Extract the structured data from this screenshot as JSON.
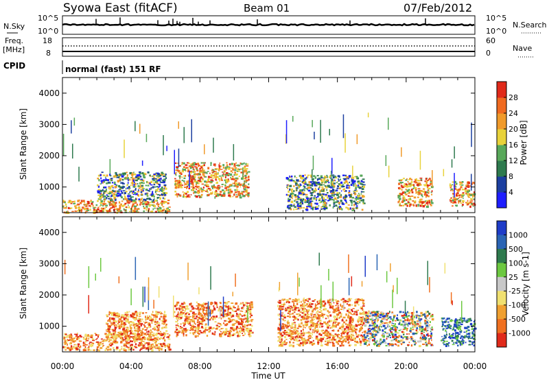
{
  "header": {
    "station": "Syowa East (fitACF)",
    "beam": "Beam 01",
    "date": "07/Feb/2012"
  },
  "panels": {
    "nsky": {
      "label": "N.Sky",
      "ticks": [
        "10^5",
        "10^0"
      ],
      "right_label": "N.Search",
      "right_ticks": [
        "10^5",
        "10^0"
      ]
    },
    "freq": {
      "label_line1": "Freq.",
      "label_line2": "[MHz]",
      "ticks": [
        "18",
        "8"
      ],
      "right_label": "Nave",
      "right_ticks": [
        "60",
        "0"
      ]
    },
    "cpid": {
      "label": "CPID",
      "text": "normal (fast) 151 RF"
    }
  },
  "chart_data": [
    {
      "type": "heatmap",
      "title": "",
      "ylabel": "Slant Range [km]",
      "ytick_values": [
        1000,
        2000,
        3000,
        4000
      ],
      "ylim": [
        180,
        4500
      ],
      "xlim": [
        0,
        24
      ],
      "x_tick_labels": [
        "00:00",
        "04:00",
        "08:00",
        "12:00",
        "16:00",
        "20:00",
        "00:00"
      ],
      "colorbar": {
        "label": "Power [dB]",
        "tick_labels": [
          "4",
          "8",
          "12",
          "16",
          "20",
          "24",
          "28"
        ],
        "colors": [
          "#1e1eff",
          "#1c3fa0",
          "#2e7a4e",
          "#58a85a",
          "#e8d23a",
          "#f09a2a",
          "#f06a20",
          "#e02a1a"
        ]
      },
      "features": [
        {
          "t_start": 0.0,
          "t_end": 6.2,
          "range_start": 200,
          "range_end": 600,
          "level": "high"
        },
        {
          "t_start": 2.0,
          "t_end": 6.0,
          "range_start": 600,
          "range_end": 1500,
          "level": "medium"
        },
        {
          "t_start": 6.5,
          "t_end": 10.8,
          "range_start": 700,
          "range_end": 1800,
          "level": "high"
        },
        {
          "t_start": 13.0,
          "t_end": 17.5,
          "range_start": 300,
          "range_end": 1400,
          "level": "medium"
        },
        {
          "t_start": 19.5,
          "t_end": 21.5,
          "range_start": 400,
          "range_end": 1300,
          "level": "high"
        },
        {
          "t_start": 22.5,
          "t_end": 24.0,
          "range_start": 400,
          "range_end": 1200,
          "level": "high"
        }
      ]
    },
    {
      "type": "heatmap",
      "title": "",
      "ylabel": "Slant Range [km]",
      "ytick_values": [
        1000,
        2000,
        3000,
        4000
      ],
      "ylim": [
        180,
        4500
      ],
      "xlim": [
        0,
        24
      ],
      "x_tick_labels": [
        "00:00",
        "04:00",
        "08:00",
        "12:00",
        "16:00",
        "20:00",
        "00:00"
      ],
      "xlabel": "Time UT",
      "colorbar": {
        "label": "Velocity [m s-1]",
        "tick_labels": [
          "1000",
          "500",
          "100",
          "25",
          "-25",
          "-100",
          "-500",
          "-1000"
        ],
        "colors": [
          "#1e3cc8",
          "#2a64b4",
          "#2e7a4e",
          "#6cc840",
          "#c8c8c8",
          "#f0e070",
          "#f0a030",
          "#f07020",
          "#e02a1a"
        ]
      },
      "features": [
        {
          "t_start": 0.0,
          "t_end": 6.2,
          "range_start": 250,
          "range_end": 800,
          "level": "negative"
        },
        {
          "t_start": 2.5,
          "t_end": 6.0,
          "range_start": 600,
          "range_end": 1500,
          "level": "negative"
        },
        {
          "t_start": 6.5,
          "t_end": 11.0,
          "range_start": 700,
          "range_end": 1800,
          "level": "negative"
        },
        {
          "t_start": 12.5,
          "t_end": 17.5,
          "range_start": 400,
          "range_end": 1900,
          "level": "negative"
        },
        {
          "t_start": 17.5,
          "t_end": 21.5,
          "range_start": 400,
          "range_end": 1500,
          "level": "mixed"
        },
        {
          "t_start": 22.0,
          "t_end": 24.0,
          "range_start": 400,
          "range_end": 1300,
          "level": "positive"
        }
      ]
    }
  ]
}
